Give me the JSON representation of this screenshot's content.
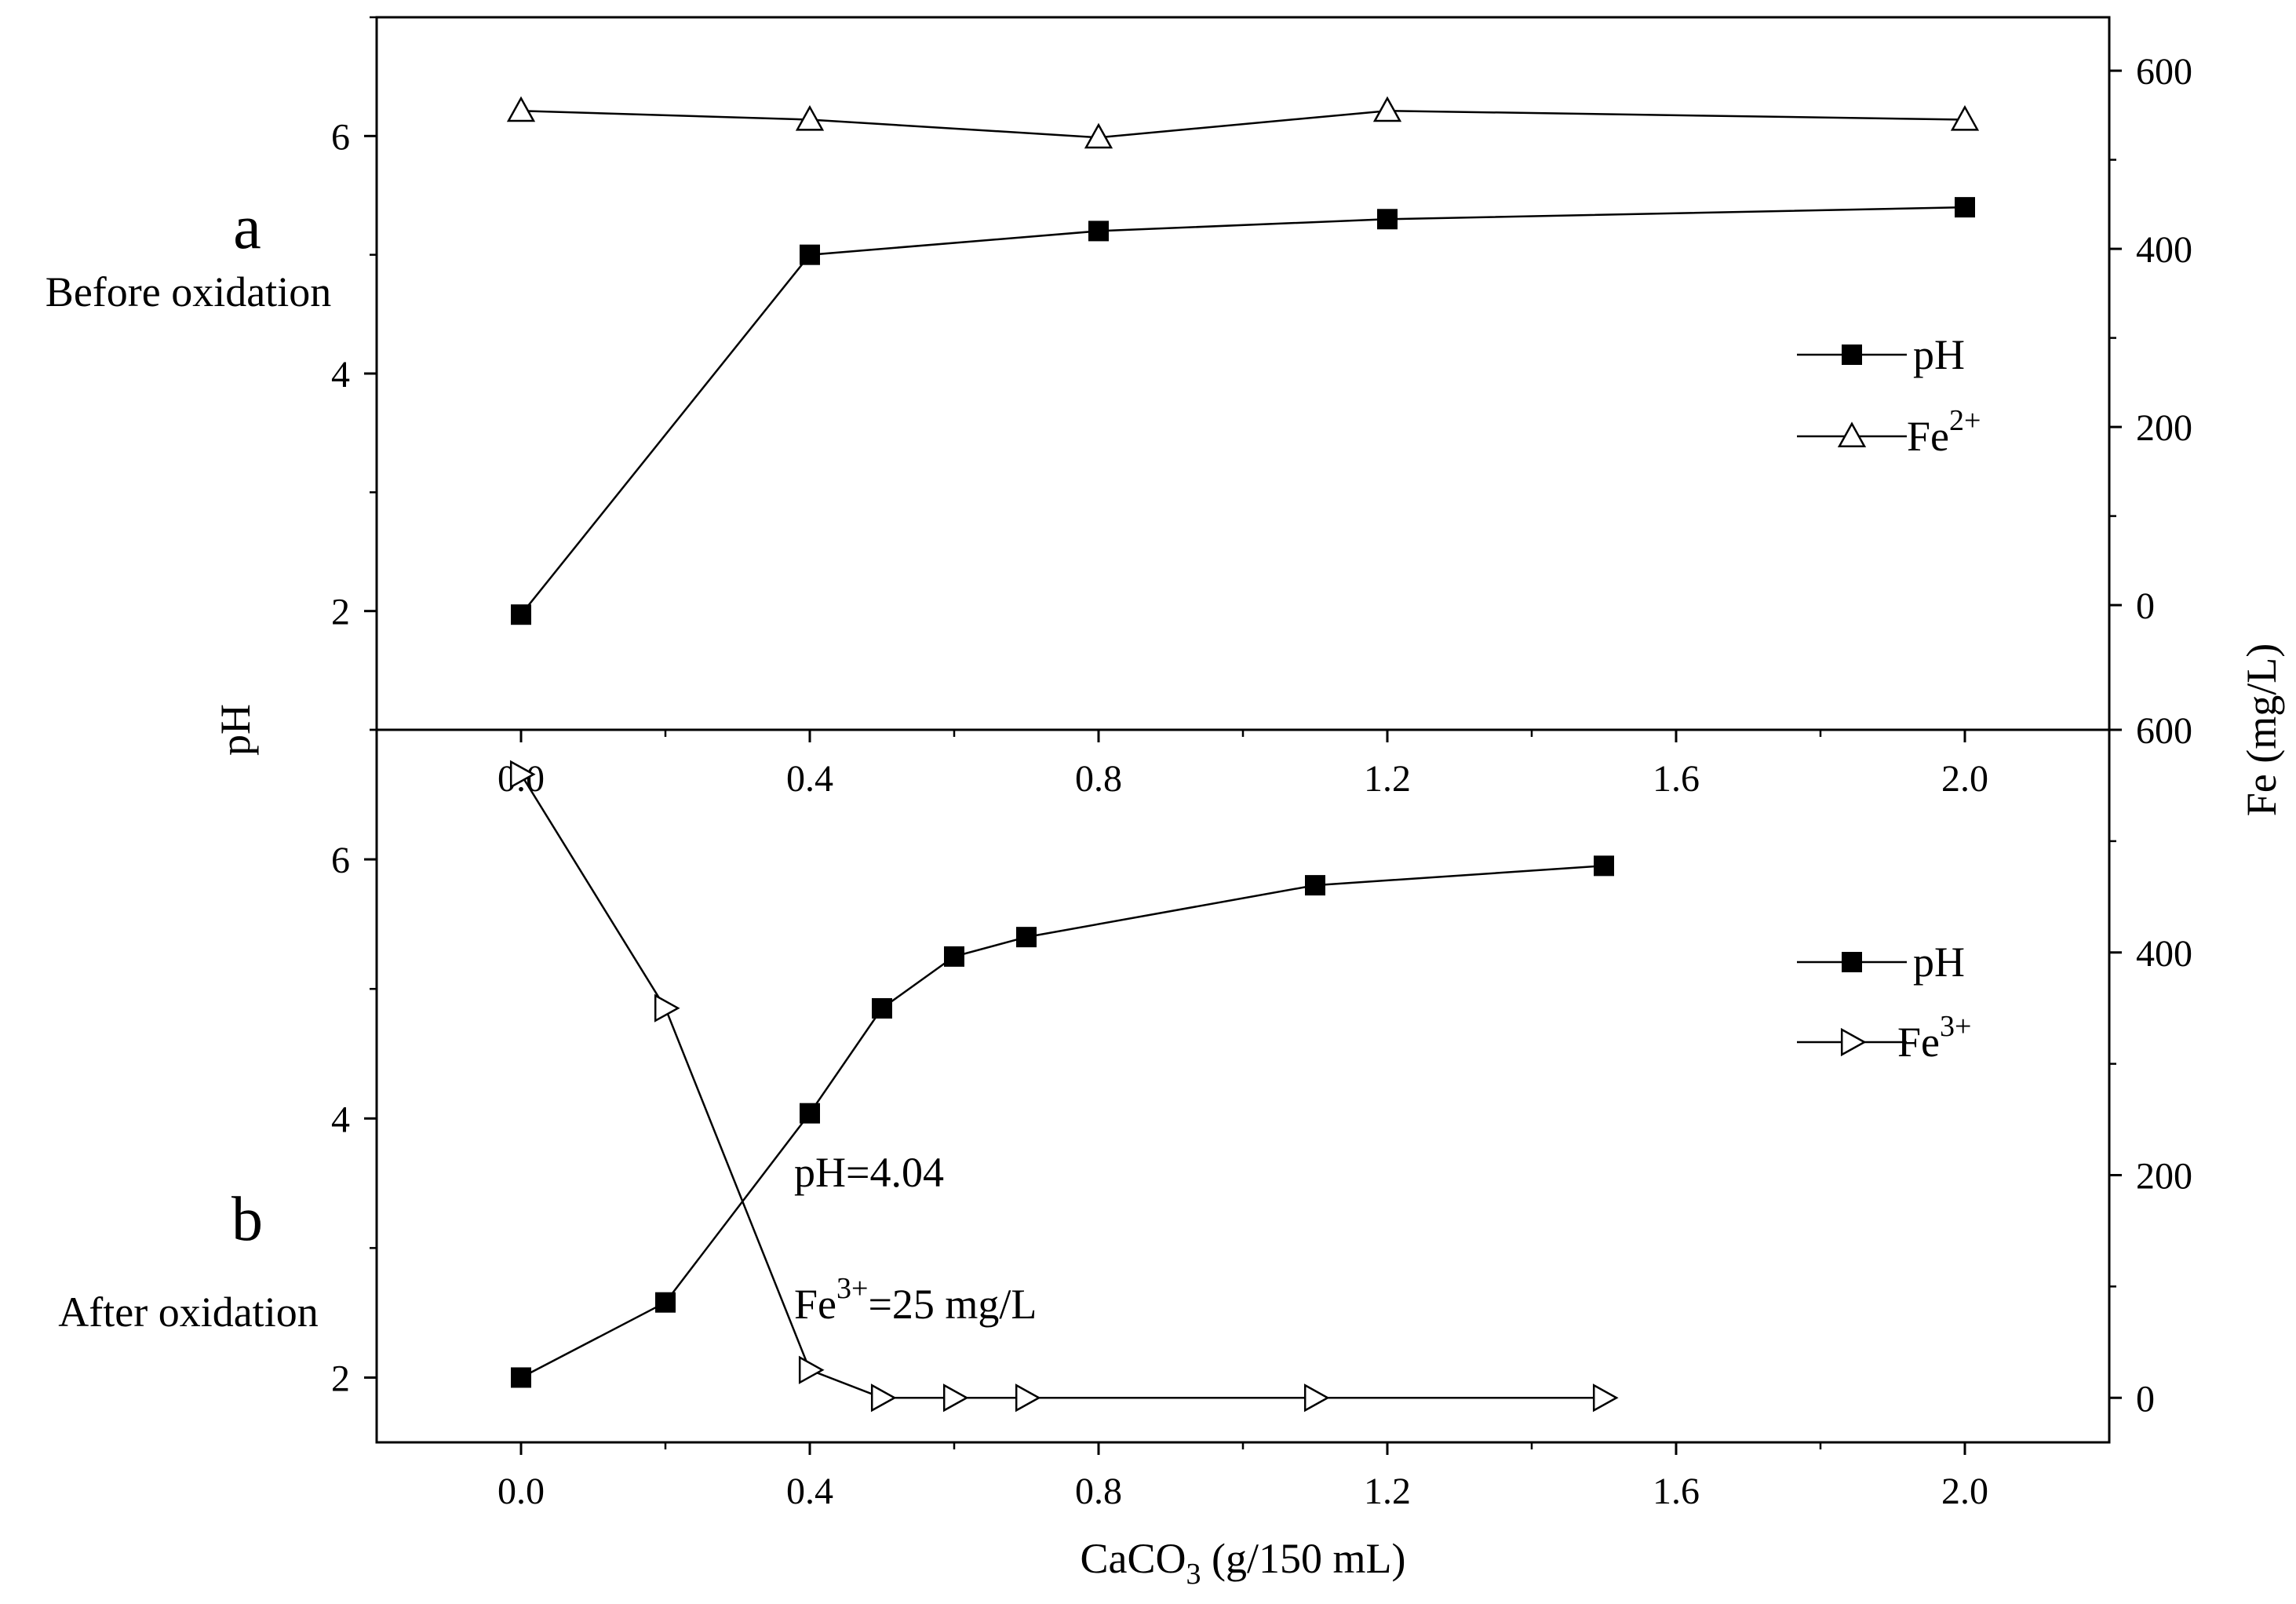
{
  "chart_data": [
    {
      "panel": "a",
      "panel_label": "a",
      "description": "Before oxidation",
      "type": "line",
      "xlabel_main": "CaCO",
      "xlabel_sub": "3",
      "xlabel_rest": " (g/150 mL)",
      "ylabel_left": "pH",
      "ylabel_right": "Fe (mg/L)",
      "xlim": [
        -0.2,
        2.2
      ],
      "ylim_left": [
        1.0,
        7.0
      ],
      "ylim_right": [
        -140,
        660
      ],
      "xticks": [
        "0.0",
        "0.4",
        "0.8",
        "1.2",
        "1.6",
        "2.0"
      ],
      "yticks_left": [
        "2",
        "4",
        "6"
      ],
      "yticks_right": [
        "0",
        "200",
        "400",
        "600"
      ],
      "legend_position": "right",
      "series": [
        {
          "name": "pH",
          "axis": "left",
          "marker": "filled-square",
          "x": [
            0.0,
            0.4,
            0.8,
            1.2,
            2.0
          ],
          "y": [
            1.97,
            5.0,
            5.2,
            5.3,
            5.4
          ]
        },
        {
          "name": "Fe",
          "name_sup": "2+",
          "axis": "right",
          "marker": "open-triangle-up",
          "x": [
            0.0,
            0.4,
            0.8,
            1.2,
            2.0
          ],
          "y": [
            555,
            545,
            525,
            555,
            545
          ]
        }
      ]
    },
    {
      "panel": "b",
      "panel_label": "b",
      "description": "After oxidation",
      "type": "line",
      "xlim": [
        -0.2,
        2.2
      ],
      "ylim_left": [
        1.5,
        7.0
      ],
      "ylim_right": [
        -40,
        600
      ],
      "xticks": [
        "0.0",
        "0.4",
        "0.8",
        "1.2",
        "1.6",
        "2.0"
      ],
      "yticks_left": [
        "2",
        "4",
        "6"
      ],
      "yticks_right": [
        "0",
        "200",
        "400",
        "600"
      ],
      "legend_position": "right",
      "annotations": {
        "ph_text": "pH=4.04",
        "fe_main": "Fe",
        "fe_sup": "3+",
        "fe_rest": "=25 mg/L"
      },
      "series": [
        {
          "name": "pH",
          "axis": "left",
          "marker": "filled-square",
          "x": [
            0.0,
            0.2,
            0.4,
            0.5,
            0.6,
            0.7,
            1.1,
            1.5
          ],
          "y": [
            2.0,
            2.58,
            4.04,
            4.85,
            5.25,
            5.4,
            5.8,
            5.95
          ]
        },
        {
          "name": "Fe",
          "name_sup": "3+",
          "axis": "right",
          "marker": "open-triangle-right",
          "x": [
            0.0,
            0.2,
            0.4,
            0.5,
            0.6,
            0.7,
            1.1,
            1.5
          ],
          "y": [
            560,
            350,
            25,
            0,
            0,
            0,
            0,
            0
          ]
        }
      ]
    }
  ]
}
